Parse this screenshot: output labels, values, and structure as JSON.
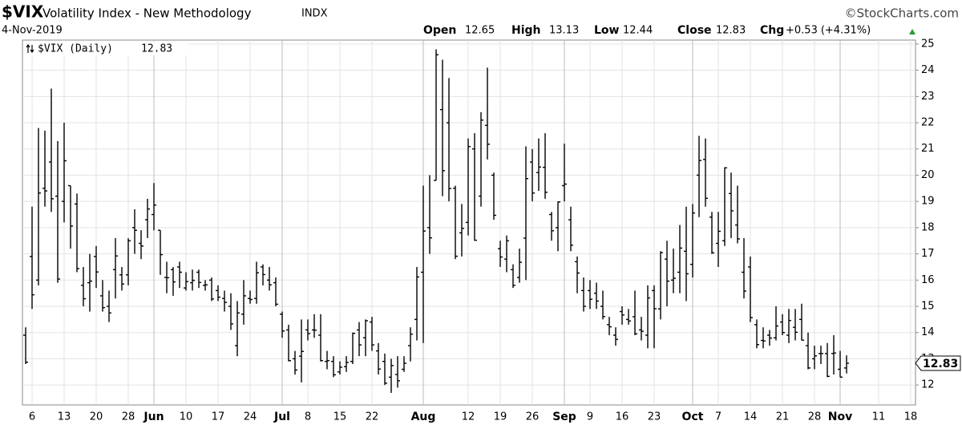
{
  "chart_data": {
    "type": "ohlc",
    "symbol": "$VIX",
    "name": "Volatility Index - New Methodology",
    "exchange": "INDX",
    "date": "4-Nov-2019",
    "watermark": "©StockCharts.com",
    "stats": [
      {
        "label": "Open",
        "value": 12.65
      },
      {
        "label": "High",
        "value": 13.13
      },
      {
        "label": "Low",
        "value": 12.44
      },
      {
        "label": "Close",
        "value": 12.83
      }
    ],
    "change": {
      "label": "Chg",
      "value": 0.53,
      "value_label": "+0.53",
      "percent": 4.31,
      "percent_label": "(+4.31%)"
    },
    "legend": "$VIX (Daily)",
    "color": "#000000",
    "grid": true,
    "ylim": [
      11.24,
      25.15
    ],
    "yticks": [
      12,
      13,
      14,
      15,
      16,
      17,
      18,
      19,
      20,
      21,
      22,
      23,
      24,
      25
    ],
    "categories": [
      null,
      "6",
      null,
      null,
      null,
      null,
      "13",
      null,
      null,
      null,
      null,
      "20",
      null,
      null,
      null,
      null,
      "28",
      null,
      null,
      null,
      "Jun",
      null,
      null,
      null,
      null,
      "10",
      null,
      null,
      null,
      null,
      "17",
      null,
      null,
      null,
      null,
      "24",
      null,
      null,
      null,
      null,
      "Jul",
      null,
      null,
      null,
      "8",
      null,
      null,
      null,
      null,
      "15",
      null,
      null,
      null,
      null,
      "22",
      null,
      null,
      null,
      null,
      null,
      null,
      null,
      "Aug",
      null,
      null,
      null,
      null,
      null,
      null,
      "12",
      null,
      null,
      null,
      null,
      "19",
      null,
      null,
      null,
      null,
      "26",
      null,
      null,
      null,
      null,
      "Sep",
      null,
      null,
      null,
      "9",
      null,
      null,
      null,
      null,
      "16",
      null,
      null,
      null,
      null,
      "23",
      null,
      null,
      null,
      null,
      null,
      "Oct",
      null,
      null,
      null,
      "7",
      null,
      null,
      null,
      null,
      "14",
      null,
      null,
      null,
      null,
      "21",
      null,
      null,
      null,
      null,
      "28",
      null,
      null,
      null,
      "Nov",
      null,
      null,
      null,
      null,
      null,
      "11",
      null,
      null,
      null,
      null,
      "18"
    ],
    "open": [
      13.9,
      16.9,
      16.0,
      19.5,
      20.5,
      19.2,
      19.0,
      19.6,
      18.9,
      15.8,
      15.9,
      16.9,
      15.4,
      15.0,
      16.4,
      16.2,
      16.2,
      18.0,
      17.4,
      18.3,
      18.5,
      17.9,
      16.1,
      16.4,
      16.5,
      15.7,
      15.9,
      16.3,
      15.8,
      16.0,
      15.6,
      15.3,
      15.0,
      13.5,
      14.7,
      15.3,
      15.3,
      16.5,
      16.0,
      15.9,
      14.7,
      14.1,
      13.0,
      13.1,
      14.1,
      14.1,
      13.9,
      12.9,
      12.9,
      12.5,
      12.7,
      12.9,
      14.1,
      13.8,
      14.4,
      13.3,
      12.9,
      12.3,
      12.4,
      12.6,
      13.5,
      14.5,
      16.3,
      18.0,
      19.8,
      22.5,
      22.0,
      19.5,
      17.8,
      18.2,
      21.0,
      19.2,
      21.9,
      20.0,
      17.2,
      16.8,
      16.4,
      16.1,
      17.6,
      20.5,
      20.1,
      20.3,
      18.5,
      18.0,
      19.6,
      18.3,
      16.7,
      15.6,
      15.6,
      15.5,
      15.0,
      14.3,
      13.9,
      14.8,
      14.5,
      14.6,
      14.1,
      13.9,
      15.6,
      14.9,
      16.8,
      16.0,
      16.3,
      17.1,
      16.6,
      20.0,
      20.6,
      18.4,
      17.4,
      17.5,
      19.3,
      18.1,
      16.3,
      16.5,
      14.3,
      13.7,
      13.9,
      13.8,
      14.4,
      13.9,
      14.2,
      14.5,
      13.5,
      13.0,
      13.2,
      13.2,
      13.2,
      12.6,
      12.65,
      null,
      null,
      null,
      null,
      null,
      null,
      null,
      null,
      null,
      null
    ],
    "high": [
      14.2,
      18.8,
      21.8,
      21.7,
      23.3,
      21.3,
      22.0,
      19.6,
      19.3,
      16.5,
      17.0,
      17.3,
      16.0,
      15.6,
      17.6,
      16.5,
      17.6,
      18.7,
      17.9,
      19.1,
      19.7,
      17.9,
      16.7,
      16.5,
      16.7,
      16.3,
      16.4,
      16.4,
      16.0,
      16.1,
      15.8,
      15.6,
      15.5,
      15.2,
      16.0,
      15.6,
      16.7,
      16.6,
      16.5,
      16.1,
      14.8,
      14.3,
      13.3,
      14.5,
      14.5,
      14.7,
      14.7,
      13.3,
      13.1,
      12.9,
      13.1,
      14.0,
      14.4,
      14.5,
      14.6,
      13.6,
      13.2,
      13.0,
      13.1,
      13.1,
      14.2,
      16.5,
      19.6,
      20.0,
      24.8,
      24.4,
      23.7,
      19.6,
      18.9,
      21.4,
      21.6,
      22.4,
      24.1,
      20.1,
      17.5,
      17.7,
      16.6,
      17.2,
      21.1,
      21.0,
      21.4,
      21.6,
      18.6,
      19.0,
      21.2,
      18.8,
      16.9,
      16.1,
      16.0,
      15.9,
      15.6,
      14.6,
      14.2,
      15.0,
      14.9,
      15.6,
      14.6,
      15.8,
      15.8,
      17.1,
      17.5,
      17.2,
      18.1,
      18.8,
      18.9,
      21.5,
      21.4,
      18.6,
      18.6,
      20.3,
      20.1,
      19.6,
      17.6,
      16.9,
      14.5,
      14.2,
      14.1,
      15.0,
      14.7,
      14.9,
      14.9,
      15.1,
      14.0,
      13.5,
      13.5,
      13.6,
      13.9,
      13.3,
      13.13,
      null,
      null,
      null,
      null,
      null,
      null,
      null,
      null,
      null,
      null
    ],
    "low": [
      12.8,
      14.9,
      15.8,
      18.8,
      18.6,
      15.9,
      18.2,
      17.2,
      16.3,
      15.0,
      14.8,
      15.7,
      14.8,
      14.4,
      15.3,
      15.6,
      15.8,
      17.0,
      16.8,
      17.6,
      17.9,
      16.2,
      15.5,
      15.4,
      15.7,
      15.6,
      15.6,
      15.7,
      15.6,
      15.2,
      15.2,
      14.8,
      14.1,
      13.1,
      14.3,
      15.1,
      15.1,
      15.8,
      15.6,
      15.0,
      13.8,
      12.9,
      12.4,
      12.1,
      13.7,
      13.8,
      12.9,
      12.6,
      12.3,
      12.4,
      12.5,
      12.8,
      13.1,
      13.1,
      13.3,
      12.4,
      12.0,
      11.7,
      11.9,
      12.5,
      12.9,
      13.7,
      13.6,
      17.0,
      19.8,
      19.2,
      19.0,
      16.8,
      16.9,
      17.7,
      17.5,
      18.8,
      20.6,
      18.3,
      16.5,
      16.3,
      15.7,
      15.9,
      16.0,
      19.0,
      19.4,
      19.1,
      17.5,
      17.1,
      19.0,
      17.1,
      15.5,
      14.8,
      14.9,
      14.9,
      14.5,
      13.9,
      13.5,
      14.3,
      14.3,
      13.9,
      13.7,
      13.4,
      13.4,
      14.5,
      15.0,
      15.5,
      15.5,
      15.2,
      16.1,
      18.4,
      18.8,
      17.0,
      16.5,
      17.3,
      17.6,
      17.4,
      15.3,
      14.4,
      13.4,
      13.4,
      13.5,
      13.7,
      13.9,
      13.6,
      13.7,
      13.7,
      12.6,
      12.6,
      12.8,
      12.3,
      12.4,
      12.3,
      12.44,
      null,
      null,
      null,
      null,
      null,
      null,
      null,
      null,
      null,
      null
    ],
    "close": [
      12.87,
      15.44,
      19.32,
      19.4,
      19.1,
      16.04,
      20.55,
      18.06,
      16.44,
      15.29,
      15.96,
      16.31,
      14.95,
      14.75,
      16.92,
      15.85,
      17.5,
      17.9,
      17.3,
      18.71,
      18.86,
      16.97,
      16.09,
      15.93,
      16.3,
      15.94,
      15.99,
      15.91,
      15.82,
      15.28,
      15.35,
      15.15,
      14.33,
      14.75,
      15.4,
      15.26,
      16.28,
      16.21,
      15.82,
      15.08,
      14.06,
      12.93,
      12.57,
      13.28,
      13.96,
      14.09,
      12.93,
      12.93,
      12.39,
      12.68,
      12.86,
      13.97,
      13.53,
      14.45,
      13.53,
      12.61,
      12.07,
      12.74,
      12.16,
      12.83,
      13.94,
      16.12,
      17.87,
      17.61,
      24.59,
      20.17,
      19.49,
      16.91,
      17.97,
      21.09,
      17.52,
      22.1,
      21.18,
      18.47,
      16.88,
      17.5,
      15.8,
      16.68,
      19.87,
      19.32,
      20.31,
      19.35,
      17.88,
      18.98,
      19.66,
      17.33,
      16.27,
      15.0,
      15.27,
      15.2,
      14.61,
      14.22,
      13.74,
      14.67,
      14.44,
      13.95,
      14.05,
      15.32,
      14.91,
      17.05,
      15.96,
      16.07,
      17.22,
      16.24,
      18.56,
      20.56,
      19.12,
      17.04,
      17.86,
      20.28,
      18.64,
      17.57,
      15.58,
      14.57,
      13.54,
      13.68,
      13.79,
      14.25,
      14.0,
      14.46,
      14.01,
      13.71,
      12.65,
      13.11,
      13.2,
      12.33,
      13.22,
      12.3,
      12.83,
      null,
      null,
      null,
      null,
      null,
      null,
      null,
      null,
      null,
      null
    ]
  }
}
